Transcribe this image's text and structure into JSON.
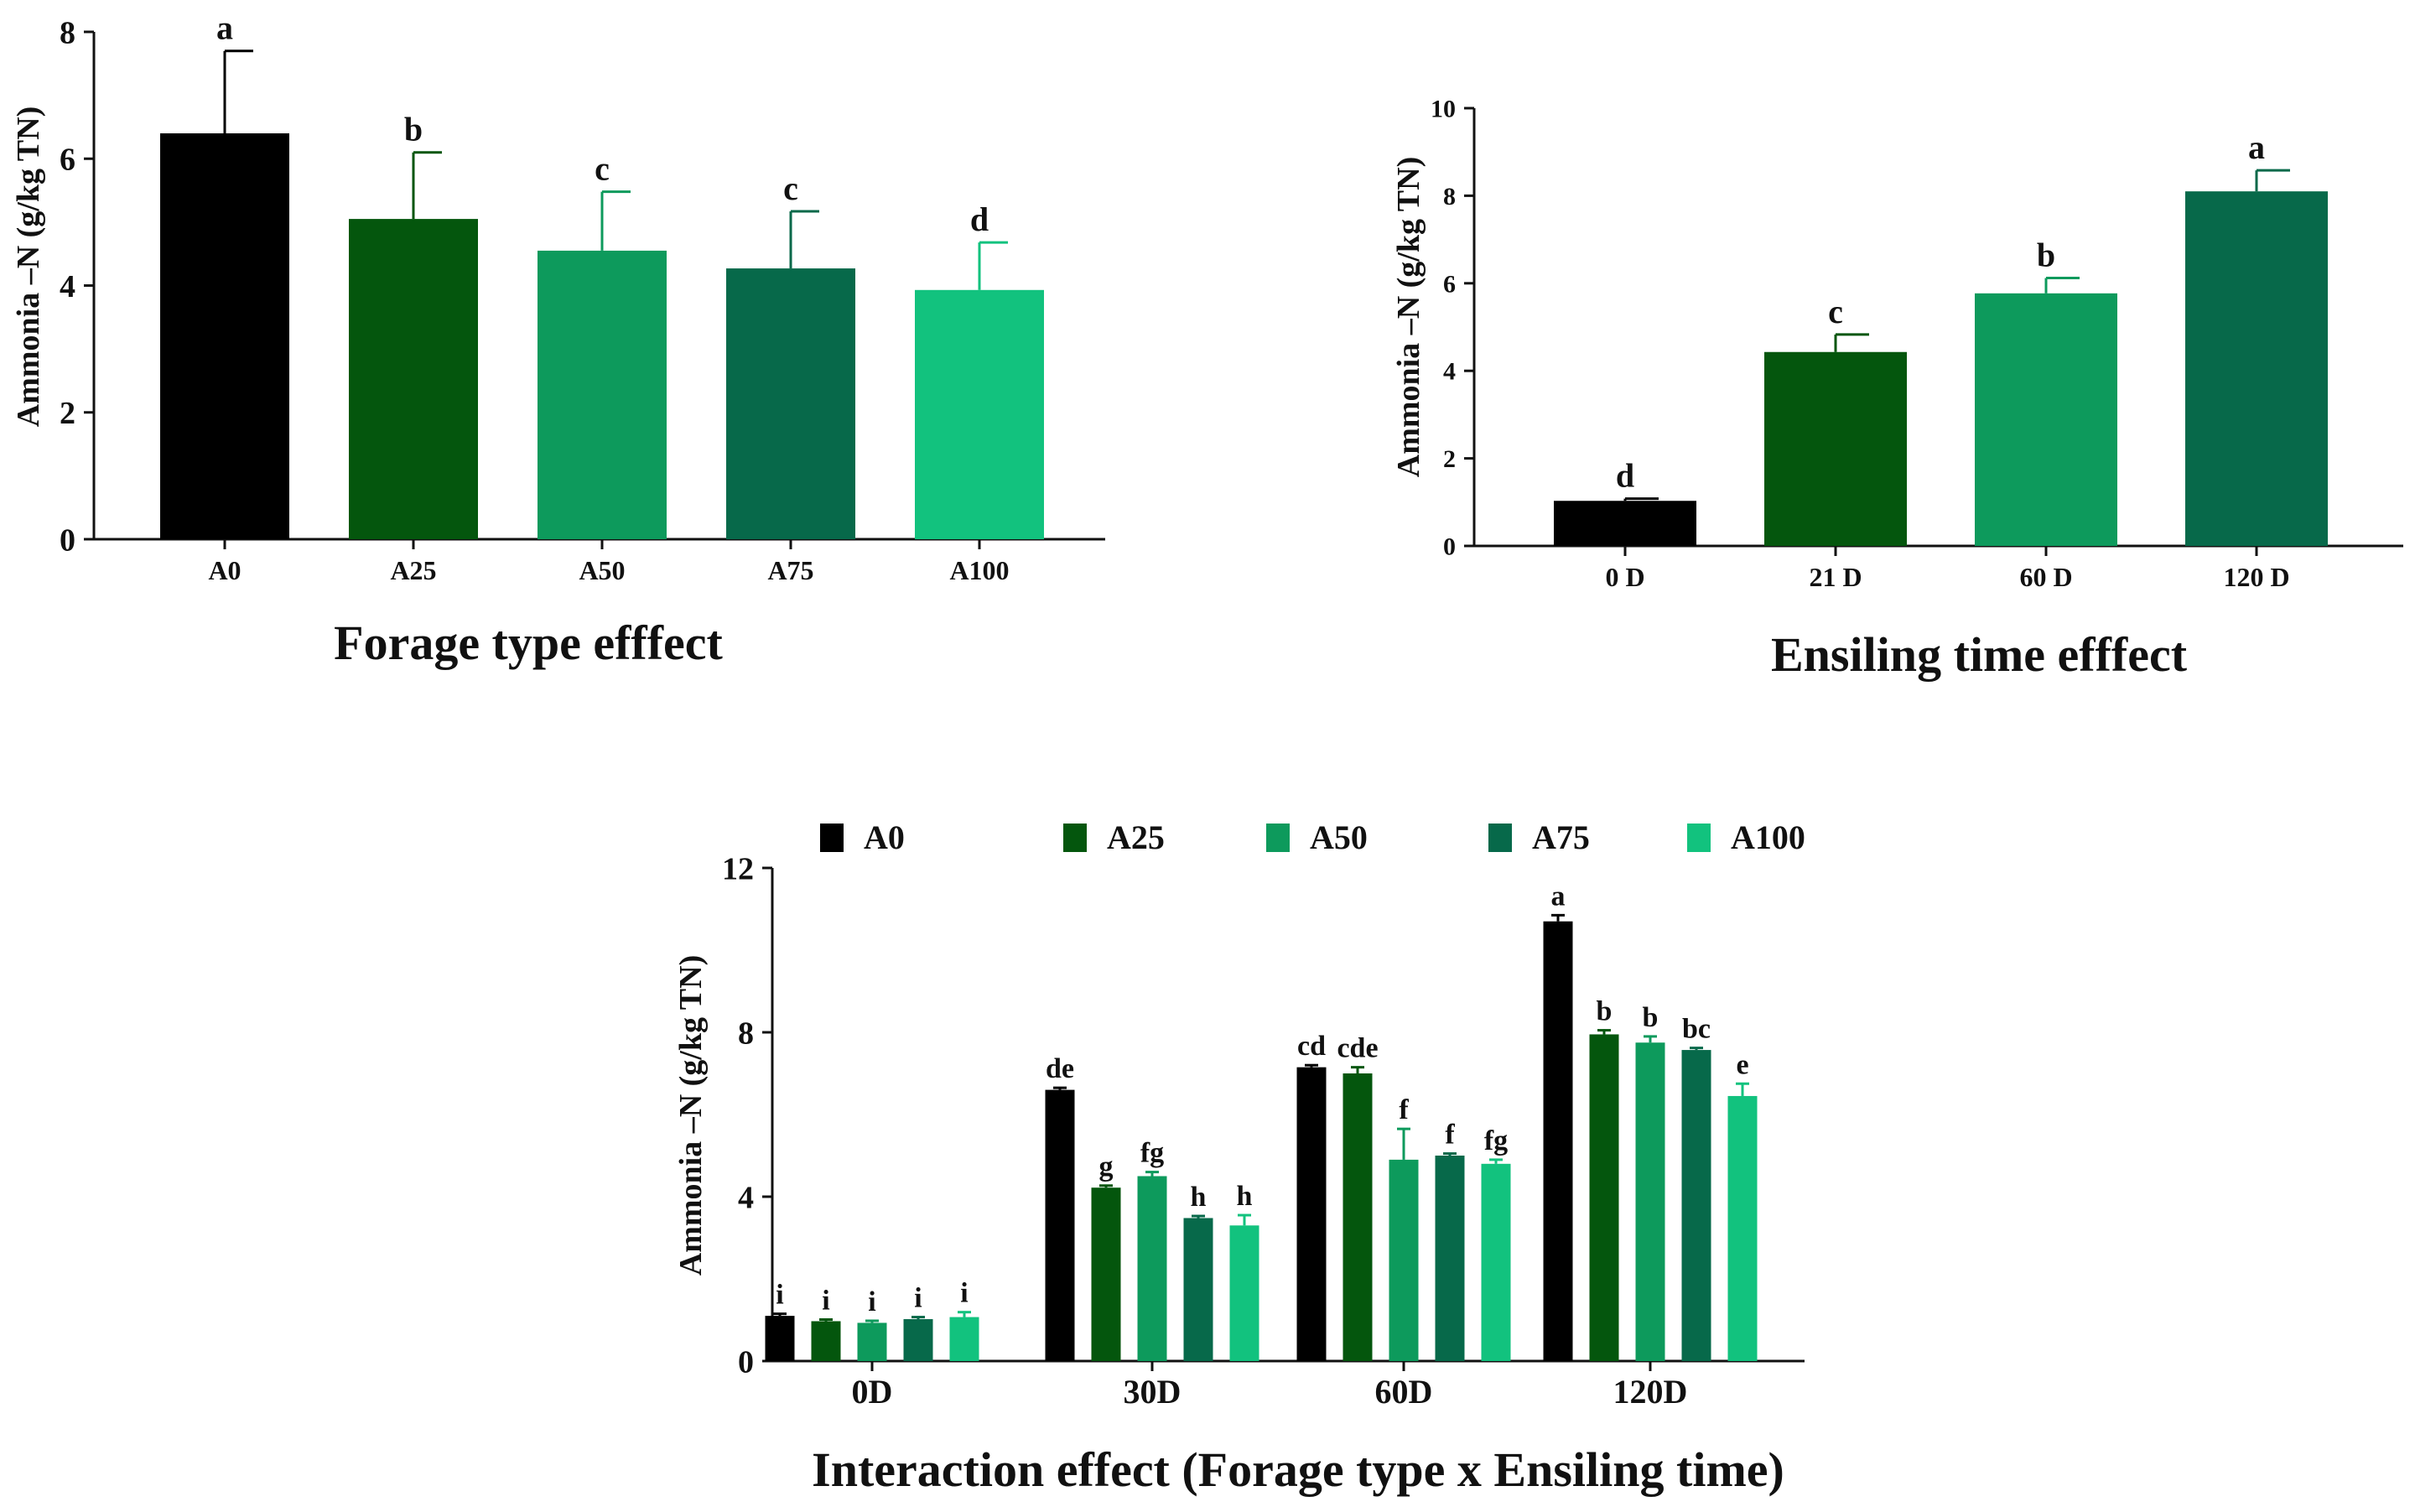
{
  "chart_data": [
    {
      "id": "forage",
      "type": "bar",
      "title": "Forage type efffect",
      "xlabel": "",
      "ylabel": "Ammonia –N (g/kg TN)",
      "ylim": [
        0,
        8
      ],
      "yticks": [
        0,
        2,
        4,
        6,
        8
      ],
      "grid": false,
      "categories": [
        "A0",
        "A25",
        "A50",
        "A75",
        "A100"
      ],
      "values": [
        6.4,
        5.05,
        4.55,
        4.27,
        3.93
      ],
      "errors": [
        1.3,
        1.05,
        0.93,
        0.9,
        0.75
      ],
      "letters": [
        "a",
        "b",
        "c",
        "c",
        "d"
      ],
      "colors": [
        "#000000",
        "#04560d",
        "#0d9a5c",
        "#07694a",
        "#12c27e"
      ]
    },
    {
      "id": "time",
      "type": "bar",
      "title": "Ensiling time efffect",
      "xlabel": "",
      "ylabel": "Ammonia –N (g/kg TN)",
      "ylim": [
        0,
        10
      ],
      "yticks": [
        0,
        2,
        4,
        6,
        8,
        10
      ],
      "grid": false,
      "categories": [
        "0 D",
        "21 D",
        "60 D",
        "120 D"
      ],
      "values": [
        1.03,
        4.43,
        5.77,
        8.1
      ],
      "errors": [
        0.05,
        0.4,
        0.35,
        0.48
      ],
      "letters": [
        "d",
        "c",
        "b",
        "a"
      ],
      "colors": [
        "#000000",
        "#04560d",
        "#0d9a5c",
        "#07694a"
      ]
    },
    {
      "id": "interaction",
      "type": "bar",
      "title": "Interaction effect (Forage type x Ensiling time)",
      "xlabel": "",
      "ylabel": "Ammonia –N (g/kg TN)",
      "ylim": [
        0,
        12
      ],
      "yticks": [
        0,
        4,
        8,
        12
      ],
      "grid": false,
      "legend_position": "top",
      "categories": [
        "0D",
        "30D",
        "60D",
        "120D"
      ],
      "series": [
        {
          "name": "A0",
          "color": "#000000",
          "values": [
            1.1,
            6.6,
            7.15,
            10.7
          ],
          "errors": [
            0.05,
            0.05,
            0.05,
            0.15
          ],
          "letters": [
            "i",
            "de",
            "cd",
            "a"
          ]
        },
        {
          "name": "A25",
          "color": "#04560d",
          "values": [
            0.97,
            4.22,
            7.0,
            7.95
          ],
          "errors": [
            0.04,
            0.05,
            0.15,
            0.1
          ],
          "letters": [
            "i",
            "g",
            "cde",
            "b"
          ]
        },
        {
          "name": "A50",
          "color": "#0d9a5c",
          "values": [
            0.93,
            4.5,
            4.9,
            7.75
          ],
          "errors": [
            0.05,
            0.1,
            0.75,
            0.15
          ],
          "letters": [
            "i",
            "fg",
            "f",
            "b"
          ]
        },
        {
          "name": "A75",
          "color": "#07694a",
          "values": [
            1.02,
            3.48,
            5.0,
            7.57
          ],
          "errors": [
            0.05,
            0.05,
            0.05,
            0.05
          ],
          "letters": [
            "i",
            "h",
            "f",
            "bc"
          ]
        },
        {
          "name": "A100",
          "color": "#12c27e",
          "values": [
            1.07,
            3.3,
            4.8,
            6.45
          ],
          "errors": [
            0.12,
            0.25,
            0.1,
            0.3
          ],
          "letters": [
            "i",
            "h",
            "fg",
            "e"
          ]
        }
      ]
    }
  ]
}
